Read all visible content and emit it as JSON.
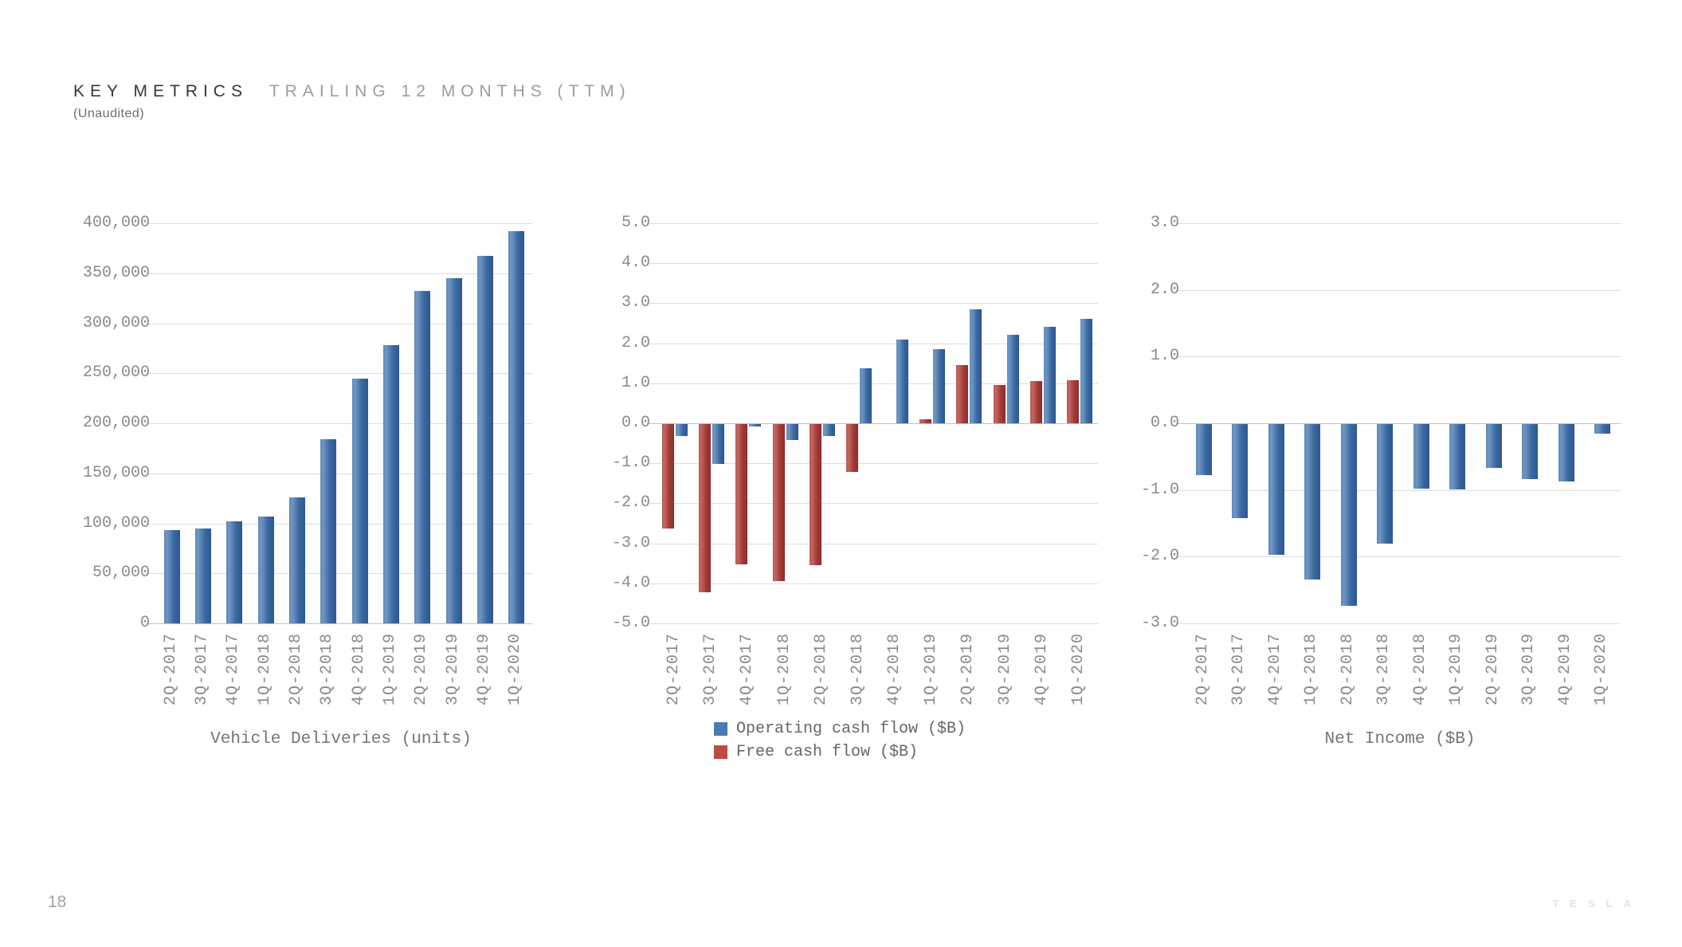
{
  "slide": {
    "title_primary": "KEY METRICS",
    "title_secondary": "TRAILING 12 MONTHS (TTM)",
    "subtitle": "(Unaudited)",
    "page_number": "18",
    "logo_text": "TESLA"
  },
  "colors": {
    "bar_blue": "#3e6ba3",
    "bar_red": "#a84340",
    "gridline": "#dcdcdc",
    "axis_text": "#8a8a8a"
  },
  "categories": [
    "2Q-2017",
    "3Q-2017",
    "4Q-2017",
    "1Q-2018",
    "2Q-2018",
    "3Q-2018",
    "4Q-2018",
    "1Q-2019",
    "2Q-2019",
    "3Q-2019",
    "4Q-2019",
    "1Q-2020"
  ],
  "chart_data": [
    {
      "type": "bar",
      "title": "Vehicle Deliveries (units)",
      "categories": [
        "2Q-2017",
        "3Q-2017",
        "4Q-2017",
        "1Q-2018",
        "2Q-2018",
        "3Q-2018",
        "4Q-2018",
        "1Q-2019",
        "2Q-2019",
        "3Q-2019",
        "4Q-2019",
        "1Q-2020"
      ],
      "series": [
        {
          "name": "Vehicle Deliveries (units)",
          "color": "blue",
          "values": [
            93000,
            95000,
            102000,
            107000,
            126000,
            184000,
            245000,
            278000,
            332000,
            345000,
            367000,
            392000
          ]
        }
      ],
      "ylim": [
        0,
        400000
      ],
      "ytick_step": 50000,
      "yticks": [
        "400,000",
        "350,000",
        "300,000",
        "250,000",
        "200,000",
        "150,000",
        "100,000",
        "50,000",
        "0"
      ],
      "grid": true,
      "legend_position": "none"
    },
    {
      "type": "bar",
      "title": "",
      "categories": [
        "2Q-2017",
        "3Q-2017",
        "4Q-2017",
        "1Q-2018",
        "2Q-2018",
        "3Q-2018",
        "4Q-2018",
        "1Q-2019",
        "2Q-2019",
        "3Q-2019",
        "4Q-2019",
        "1Q-2020"
      ],
      "series": [
        {
          "name": "Free cash flow ($B)",
          "color": "red",
          "values": [
            -2.6,
            -4.2,
            -3.5,
            -3.93,
            -3.52,
            -1.2,
            0.0,
            0.1,
            1.45,
            0.95,
            1.05,
            1.08
          ]
        },
        {
          "name": "Operating cash flow ($B)",
          "color": "blue",
          "values": [
            -0.3,
            -1.0,
            -0.06,
            -0.4,
            -0.3,
            1.37,
            2.1,
            1.86,
            2.85,
            2.22,
            2.41,
            2.6
          ]
        }
      ],
      "legend": [
        {
          "label": "Operating cash flow ($B)",
          "color": "blue"
        },
        {
          "label": "Free cash flow ($B)",
          "color": "red"
        }
      ],
      "ylim": [
        -5,
        5
      ],
      "ytick_step": 1,
      "yticks": [
        "5.0",
        "4.0",
        "3.0",
        "2.0",
        "1.0",
        "0.0",
        "-1.0",
        "-2.0",
        "-3.0",
        "-4.0",
        "-5.0"
      ],
      "grid": true,
      "legend_position": "bottom"
    },
    {
      "type": "bar",
      "title": "Net Income ($B)",
      "categories": [
        "2Q-2017",
        "3Q-2017",
        "4Q-2017",
        "1Q-2018",
        "2Q-2018",
        "3Q-2018",
        "4Q-2018",
        "1Q-2019",
        "2Q-2019",
        "3Q-2019",
        "4Q-2019",
        "1Q-2020"
      ],
      "series": [
        {
          "name": "Net Income ($B)",
          "color": "blue",
          "values": [
            -0.77,
            -1.41,
            -1.96,
            -2.33,
            -2.72,
            -1.79,
            -0.97,
            -0.98,
            -0.66,
            -0.83,
            -0.86,
            -0.14
          ]
        }
      ],
      "ylim": [
        -3,
        3
      ],
      "ytick_step": 1,
      "yticks": [
        "3.0",
        "2.0",
        "1.0",
        "0.0",
        "-1.0",
        "-2.0",
        "-3.0"
      ],
      "grid": true,
      "legend_position": "none"
    }
  ]
}
